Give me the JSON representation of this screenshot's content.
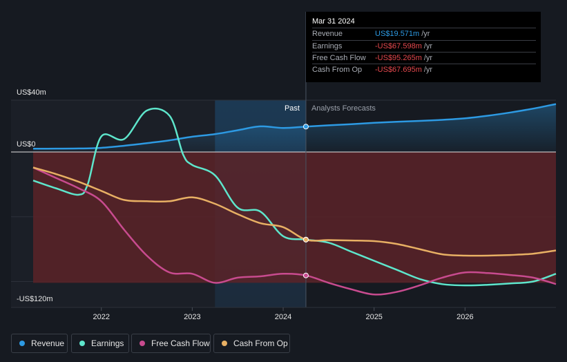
{
  "colors": {
    "revenue": "#2d9ae3",
    "earnings": "#5ee6cc",
    "free_cash_flow": "#c84b8f",
    "cash_from_op": "#e8b064",
    "background": "#161a21",
    "loss_area": "#5a2328"
  },
  "tooltip": {
    "date": "Mar 31 2024",
    "rows": [
      {
        "label": "Revenue",
        "value": "US$19.571m",
        "unit": "/yr",
        "color": "#2d9ae3"
      },
      {
        "label": "Earnings",
        "value": "-US$67.598m",
        "unit": "/yr",
        "color": "#e5484d"
      },
      {
        "label": "Free Cash Flow",
        "value": "-US$95.265m",
        "unit": "/yr",
        "color": "#e5484d"
      },
      {
        "label": "Cash From Op",
        "value": "-US$67.695m",
        "unit": "/yr",
        "color": "#e5484d"
      }
    ]
  },
  "legend": [
    {
      "label": "Revenue",
      "color": "#2d9ae3"
    },
    {
      "label": "Earnings",
      "color": "#5ee6cc"
    },
    {
      "label": "Free Cash Flow",
      "color": "#c84b8f"
    },
    {
      "label": "Cash From Op",
      "color": "#e8b064"
    }
  ],
  "chart_data": {
    "type": "line",
    "title": "",
    "xlabel": "",
    "ylabel": "",
    "xlim": [
      2021.25,
      2027.0
    ],
    "ylim": [
      -120,
      40
    ],
    "y_tick_labels": [
      {
        "value": 40,
        "label": "US$40m"
      },
      {
        "value": 0,
        "label": "US$0"
      },
      {
        "value": -120,
        "label": "-US$120m"
      }
    ],
    "gridlines": [
      40,
      -50,
      -100
    ],
    "x_ticks": [
      {
        "value": 2022,
        "label": "2022"
      },
      {
        "value": 2023,
        "label": "2023"
      },
      {
        "value": 2024,
        "label": "2024"
      },
      {
        "value": 2025,
        "label": "2025"
      },
      {
        "value": 2026,
        "label": "2026"
      }
    ],
    "past_label": "Past",
    "forecast_label": "Analysts Forecasts",
    "highlight_range": [
      2023.25,
      2024.25
    ],
    "divider_x": 2024.25,
    "marker_x": 2024.25,
    "series": [
      {
        "name": "Revenue",
        "color": "#2d9ae3",
        "x": [
          2021.25,
          2021.5,
          2021.75,
          2022.0,
          2022.25,
          2022.5,
          2022.75,
          2023.0,
          2023.25,
          2023.5,
          2023.75,
          2024.0,
          2024.25,
          2024.5,
          2024.75,
          2025.0,
          2025.25,
          2025.5,
          2025.75,
          2026.0,
          2026.25,
          2026.5,
          2026.75,
          2027.0
        ],
        "y": [
          2.5,
          2.6,
          2.7,
          3.2,
          4.8,
          6.8,
          9.0,
          11.8,
          13.8,
          16.8,
          19.8,
          18.5,
          19.6,
          20.6,
          21.5,
          22.5,
          23.3,
          24.0,
          24.8,
          26.0,
          28.0,
          30.5,
          33.5,
          37.0
        ]
      },
      {
        "name": "Earnings",
        "color": "#5ee6cc",
        "x": [
          2021.25,
          2021.5,
          2021.75,
          2021.85,
          2022.0,
          2022.25,
          2022.5,
          2022.75,
          2022.9,
          2023.0,
          2023.25,
          2023.5,
          2023.75,
          2024.0,
          2024.25,
          2024.5,
          2024.75,
          2025.0,
          2025.25,
          2025.5,
          2025.75,
          2026.0,
          2026.25,
          2026.5,
          2026.75,
          2027.0
        ],
        "y": [
          -22,
          -28,
          -33,
          -25,
          12,
          10,
          32,
          28,
          -2,
          -10,
          -18,
          -43,
          -46,
          -65,
          -67.6,
          -70,
          -77,
          -84,
          -91,
          -98,
          -102,
          -103,
          -102.5,
          -101.5,
          -100,
          -94
        ]
      },
      {
        "name": "Free Cash Flow",
        "color": "#c84b8f",
        "x": [
          2021.25,
          2021.5,
          2021.75,
          2022.0,
          2022.25,
          2022.5,
          2022.75,
          2023.0,
          2023.25,
          2023.5,
          2023.75,
          2024.0,
          2024.25,
          2024.5,
          2024.75,
          2025.0,
          2025.25,
          2025.5,
          2025.75,
          2026.0,
          2026.25,
          2026.5,
          2026.75,
          2027.0
        ],
        "y": [
          -12,
          -20,
          -28,
          -38,
          -60,
          -80,
          -93,
          -94,
          -101,
          -97,
          -96,
          -94,
          -95.3,
          -101,
          -106,
          -110,
          -108,
          -103,
          -97,
          -93,
          -93.5,
          -95,
          -97,
          -102
        ]
      },
      {
        "name": "Cash From Op",
        "color": "#e8b064",
        "x": [
          2021.25,
          2021.5,
          2021.75,
          2022.0,
          2022.25,
          2022.5,
          2022.75,
          2023.0,
          2023.25,
          2023.5,
          2023.75,
          2024.0,
          2024.25,
          2024.5,
          2024.75,
          2025.0,
          2025.25,
          2025.5,
          2025.75,
          2026.0,
          2026.25,
          2026.5,
          2026.75,
          2027.0
        ],
        "y": [
          -12,
          -17,
          -23,
          -30,
          -37,
          -38,
          -38,
          -35,
          -40,
          -48,
          -55,
          -58,
          -67.7,
          -68,
          -68.3,
          -68.8,
          -71,
          -75,
          -79,
          -80,
          -80,
          -79.5,
          -78.5,
          -76
        ]
      }
    ]
  }
}
